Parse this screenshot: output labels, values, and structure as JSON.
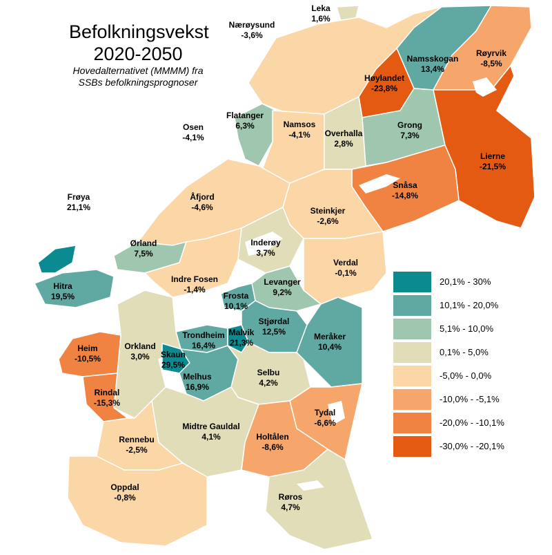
{
  "title_line1": "Befolkningsvekst",
  "title_line2": "2020-2050",
  "subtitle_line1": "Hovedalternativet (MMMM) fra",
  "subtitle_line2": "SSBs befolkningsprognoser",
  "colors": {
    "c1": "#0b8a8f",
    "c2": "#5fa9a2",
    "c3": "#9fc6ae",
    "c4": "#e0ddb8",
    "c5": "#fbd6a6",
    "c6": "#f6a56b",
    "c7": "#f08341",
    "c8": "#e45a13"
  },
  "legend": [
    {
      "label": "20,1% - 30%",
      "color": "#0b8a8f"
    },
    {
      "label": "10,1% - 20,0%",
      "color": "#5fa9a2"
    },
    {
      "label": "5,1% - 10,0%",
      "color": "#9fc6ae"
    },
    {
      "label": "0,1% - 5,0%",
      "color": "#e0ddb8"
    },
    {
      "label": "-5,0% - 0,0%",
      "color": "#fbd6a6"
    },
    {
      "label": "-10,0% - -5,1%",
      "color": "#f6a56b"
    },
    {
      "label": "-20,0% - -10,1%",
      "color": "#f08341"
    },
    {
      "label": "-30,0% - -20,1%",
      "color": "#e45a13"
    }
  ],
  "municipalities": [
    {
      "name": "Leka",
      "value": "1,6%"
    },
    {
      "name": "Nærøysund",
      "value": "-3,6%"
    },
    {
      "name": "Namsskogan",
      "value": "13,4%"
    },
    {
      "name": "Røyrvik",
      "value": "-8,5%"
    },
    {
      "name": "Høylandet",
      "value": "-23,8%"
    },
    {
      "name": "Flatanger",
      "value": "6,3%"
    },
    {
      "name": "Osen",
      "value": "-4,1%"
    },
    {
      "name": "Namsos",
      "value": "-4,1%"
    },
    {
      "name": "Overhalla",
      "value": "2,8%"
    },
    {
      "name": "Grong",
      "value": "7,3%"
    },
    {
      "name": "Lierne",
      "value": "-21,5%"
    },
    {
      "name": "Frøya",
      "value": "21,1%"
    },
    {
      "name": "Åfjord",
      "value": "-4,6%"
    },
    {
      "name": "Snåsa",
      "value": "-14,8%"
    },
    {
      "name": "Steinkjer",
      "value": "-2,6%"
    },
    {
      "name": "Ørland",
      "value": "7,5%"
    },
    {
      "name": "Inderøy",
      "value": "3,7%"
    },
    {
      "name": "Verdal",
      "value": "-0,1%"
    },
    {
      "name": "Hitra",
      "value": "19,5%"
    },
    {
      "name": "Indre Fosen",
      "value": "-1,4%"
    },
    {
      "name": "Levanger",
      "value": "9,2%"
    },
    {
      "name": "Frosta",
      "value": "10,1%"
    },
    {
      "name": "Stjørdal",
      "value": "12,5%"
    },
    {
      "name": "Meråker",
      "value": "10,4%"
    },
    {
      "name": "Trondheim",
      "value": "16,4%"
    },
    {
      "name": "Malvik",
      "value": "21,3%"
    },
    {
      "name": "Heim",
      "value": "-10,5%"
    },
    {
      "name": "Orkland",
      "value": "3,0%"
    },
    {
      "name": "Skaun",
      "value": "29,5%"
    },
    {
      "name": "Melhus",
      "value": "16,9%"
    },
    {
      "name": "Selbu",
      "value": "4,2%"
    },
    {
      "name": "Rindal",
      "value": "-15,3%"
    },
    {
      "name": "Tydal",
      "value": "-6,6%"
    },
    {
      "name": "Midtre Gauldal",
      "value": "4,1%"
    },
    {
      "name": "Rennebu",
      "value": "-2,5%"
    },
    {
      "name": "Holtålen",
      "value": "-8,6%"
    },
    {
      "name": "Oppdal",
      "value": "-0,8%"
    },
    {
      "name": "Røros",
      "value": "4,7%"
    }
  ]
}
